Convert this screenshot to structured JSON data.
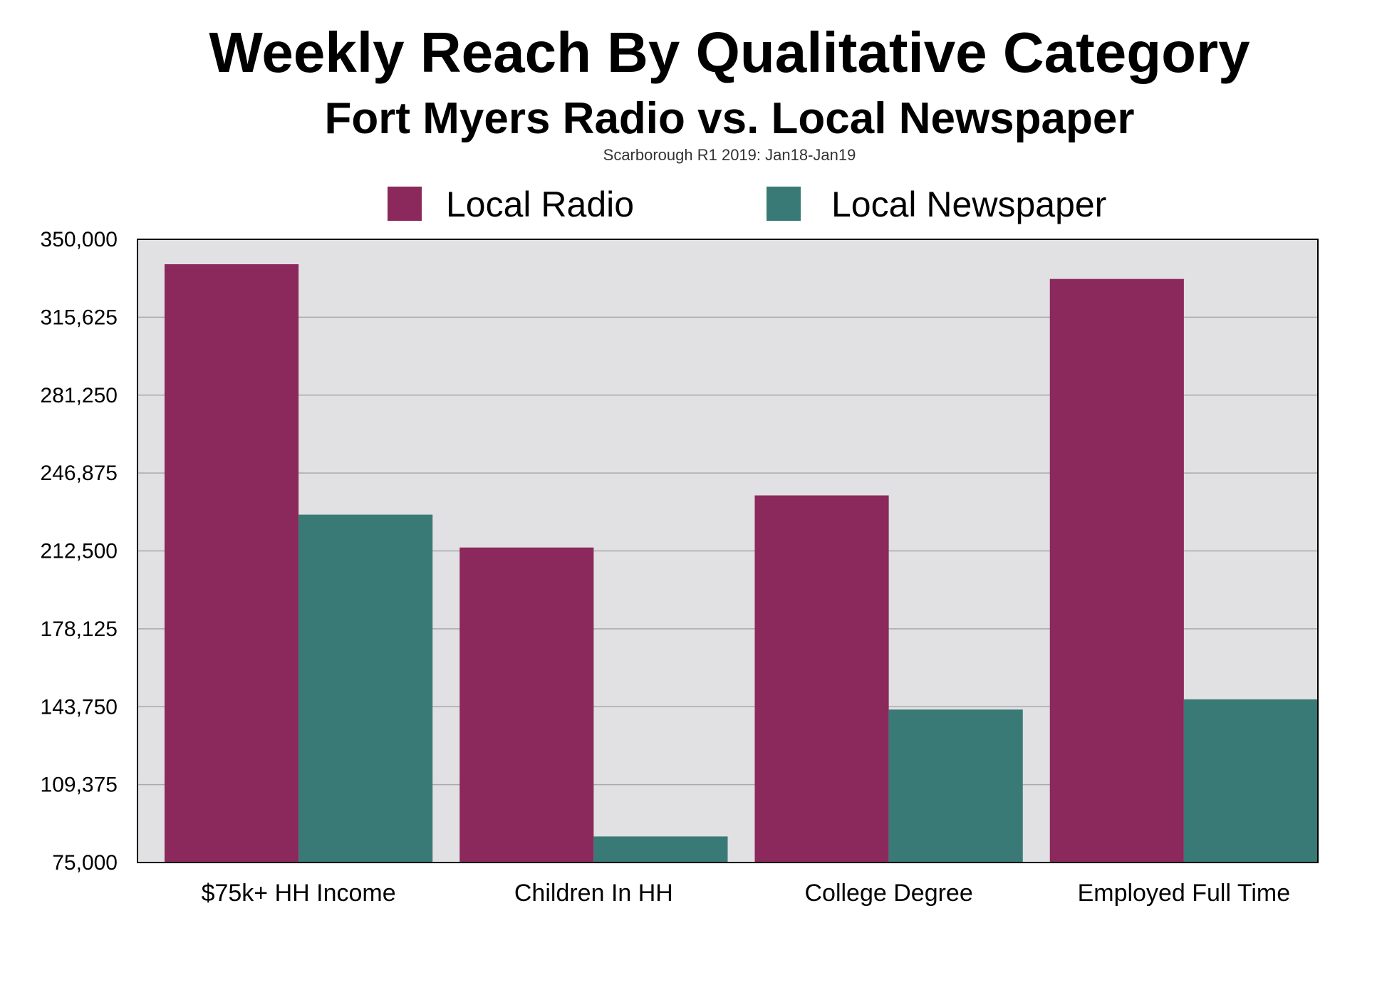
{
  "chart_data": {
    "type": "bar",
    "title": "Weekly Reach By Qualitative Category",
    "subtitle": "Fort Myers Radio vs. Local Newspaper",
    "source": "Scarborough R1 2019: Jan18-Jan19",
    "categories": [
      "$75k+ HH Income",
      "Children In HH",
      "College Degree",
      "Employed Full Time"
    ],
    "series": [
      {
        "name": "Local Radio",
        "color": "#8B285C",
        "values": [
          339000,
          214000,
          237000,
          332500
        ]
      },
      {
        "name": "Local Newspaper",
        "color": "#397A76",
        "values": [
          228500,
          86500,
          142500,
          147000
        ]
      }
    ],
    "ylim": [
      75000,
      350000
    ],
    "yticks": [
      "350,000",
      "315,625",
      "281,250",
      "246,875",
      "212,500",
      "178,125",
      "143,750",
      "109,375",
      "75,000"
    ],
    "ytick_values": [
      350000,
      315625,
      281250,
      246875,
      212500,
      178125,
      143750,
      109375,
      75000
    ],
    "xlabel": "",
    "ylabel": "",
    "grid": true,
    "legend_position": "top-center",
    "plot_background": "#E1E0E2"
  }
}
